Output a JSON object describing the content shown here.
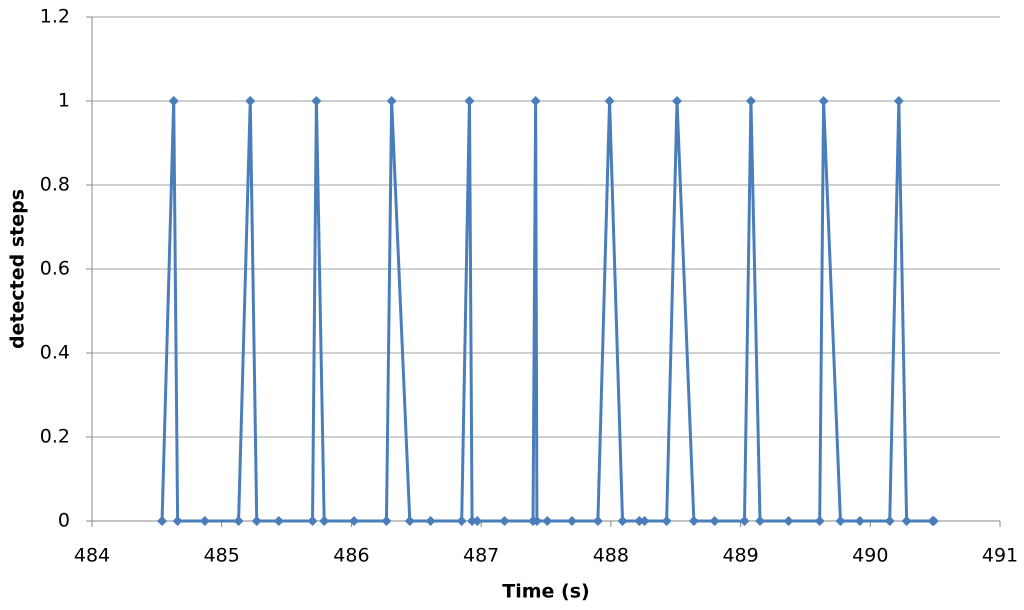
{
  "chart_data": {
    "type": "line",
    "x_label": "Time (s)",
    "y_label": "detected steps",
    "x": [
      484.54,
      484.63,
      484.66,
      484.87,
      485.13,
      485.22,
      485.27,
      485.44,
      485.7,
      485.73,
      485.79,
      486.02,
      486.27,
      486.31,
      486.45,
      486.61,
      486.85,
      486.91,
      486.93,
      486.97,
      487.18,
      487.4,
      487.42,
      487.43,
      487.51,
      487.7,
      487.9,
      487.99,
      488.09,
      488.22,
      488.26,
      488.43,
      488.51,
      488.64,
      488.8,
      489.03,
      489.08,
      489.15,
      489.37,
      489.61,
      489.64,
      489.77,
      489.92,
      490.15,
      490.22,
      490.28,
      490.48,
      490.49
    ],
    "series": [
      {
        "name": "detected steps",
        "color": "#4a7ebb",
        "values": [
          0,
          1,
          0,
          0,
          0,
          1,
          0,
          0,
          0,
          1,
          0,
          0,
          0,
          1,
          0,
          0,
          0,
          1,
          0,
          0,
          0,
          0,
          1,
          0,
          0,
          0,
          0,
          1,
          0,
          0,
          0,
          0,
          1,
          0,
          0,
          0,
          1,
          0,
          0,
          0,
          1,
          0,
          0,
          0,
          1,
          0,
          0,
          0
        ]
      }
    ],
    "xlim": [
      484,
      491
    ],
    "xticks": [
      484,
      485,
      486,
      487,
      488,
      489,
      490,
      491
    ],
    "ylim": [
      0,
      1.2
    ],
    "yticks": [
      0,
      0.2,
      0.4,
      0.6,
      0.8,
      1,
      1.2
    ],
    "grid": true,
    "marker": "diamond"
  }
}
